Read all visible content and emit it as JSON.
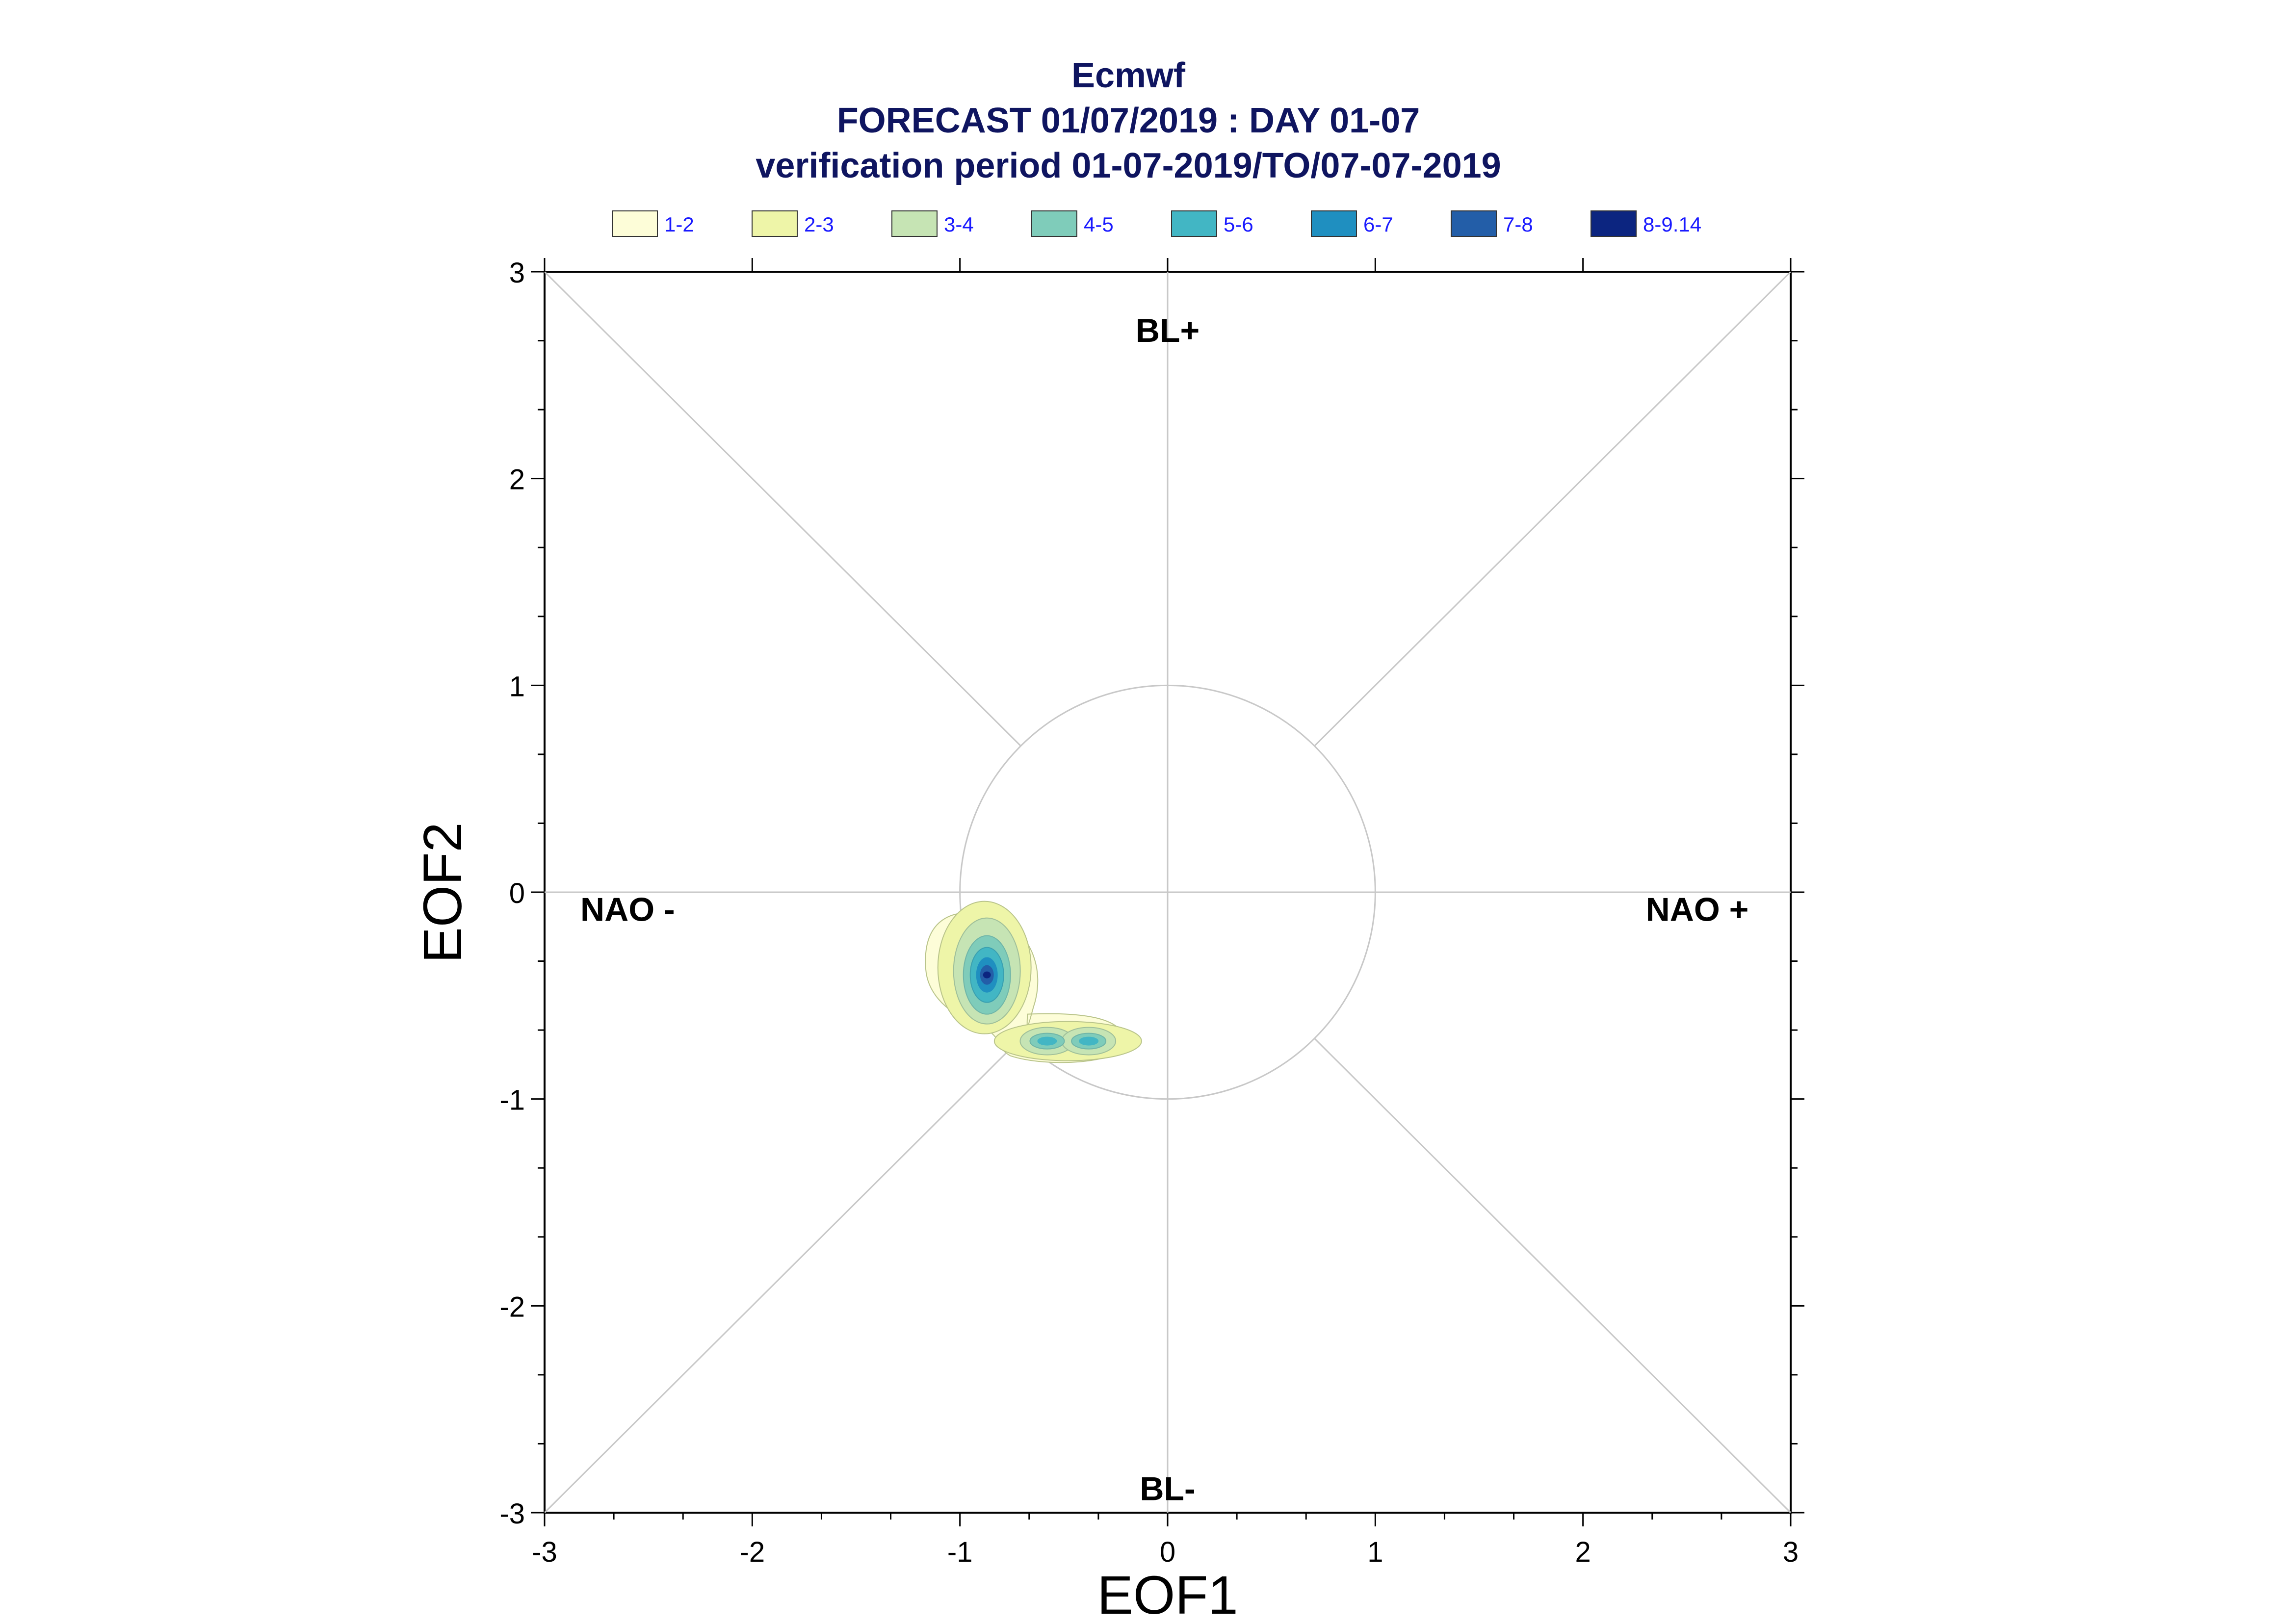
{
  "chart_data": {
    "type": "contour",
    "title": "Ecmwf",
    "subtitle_1": "FORECAST 01/07/2019 : DAY 01-07",
    "subtitle_2": "verification period 01-07-2019/TO/07-07-2019",
    "xlabel": "EOF1",
    "ylabel": "EOF2",
    "xlim": [
      -3,
      3
    ],
    "ylim": [
      -3,
      3
    ],
    "x_ticks": [
      {
        "value": -3,
        "label": "-3"
      },
      {
        "value": -2,
        "label": "-2"
      },
      {
        "value": -1,
        "label": "-1"
      },
      {
        "value": 0,
        "label": "0"
      },
      {
        "value": 1,
        "label": "1"
      },
      {
        "value": 2,
        "label": "2"
      },
      {
        "value": 3,
        "label": "3"
      }
    ],
    "y_ticks": [
      {
        "value": 3,
        "label": "3"
      },
      {
        "value": 2,
        "label": "2"
      },
      {
        "value": 1,
        "label": "1"
      },
      {
        "value": 0,
        "label": "0"
      },
      {
        "value": -1,
        "label": "-1"
      },
      {
        "value": -2,
        "label": "-2"
      },
      {
        "value": -3,
        "label": "-3"
      }
    ],
    "reference_circle_radius": 1,
    "regime_labels": [
      {
        "text": "BL+",
        "x": 0,
        "y": 2.72
      },
      {
        "text": "BL-",
        "x": 0,
        "y": -2.88
      },
      {
        "text": "NAO -",
        "x": -2.6,
        "y": -0.08
      },
      {
        "text": "NAO +",
        "x": 2.55,
        "y": -0.08
      }
    ],
    "legend": {
      "placement": "top",
      "entries": [
        {
          "label": "1-2",
          "color": "#fdfdd8"
        },
        {
          "label": "2-3",
          "color": "#eef5a8"
        },
        {
          "label": "3-4",
          "color": "#c6e4b4"
        },
        {
          "label": "4-5",
          "color": "#7fccba"
        },
        {
          "label": "5-6",
          "color": "#42b6c4"
        },
        {
          "label": "6-7",
          "color": "#1f8fc0"
        },
        {
          "label": "7-8",
          "color": "#235ea8"
        },
        {
          "label": "8-9.14",
          "color": "#0c2580"
        }
      ]
    },
    "density_peaks": [
      {
        "x": -0.87,
        "y": -0.4,
        "max_level": 8
      },
      {
        "x": -0.58,
        "y": -0.72,
        "max_level": 5
      },
      {
        "x": -0.38,
        "y": -0.72,
        "max_level": 5
      }
    ]
  }
}
